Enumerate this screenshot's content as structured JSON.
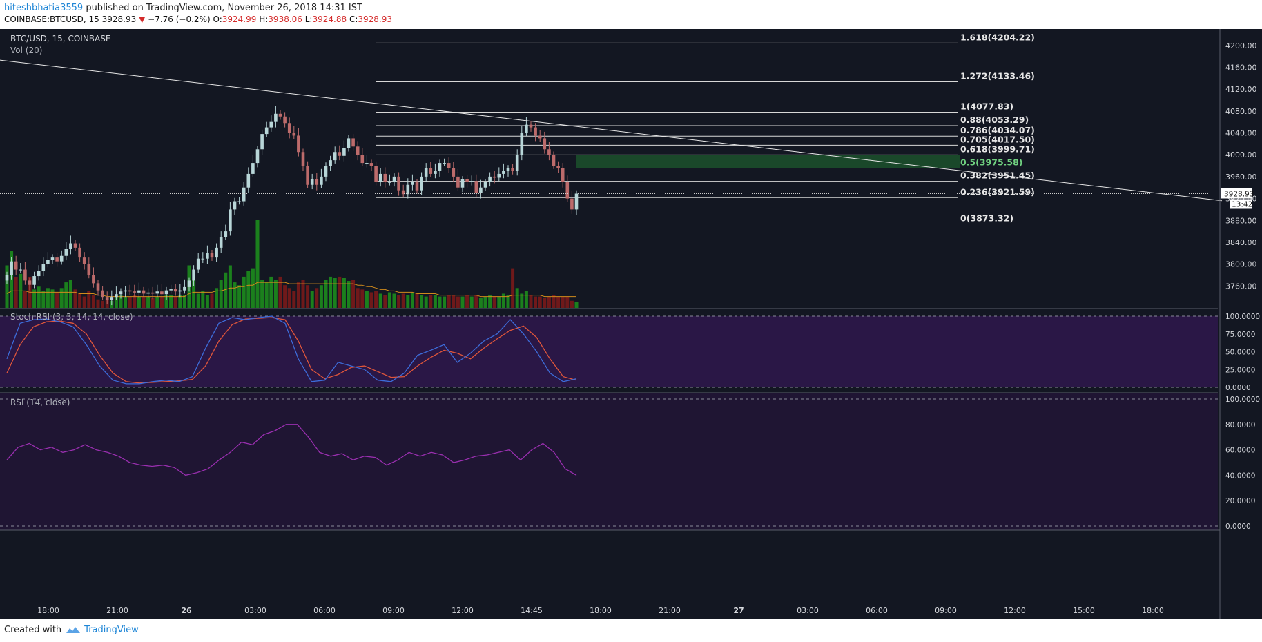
{
  "header": {
    "user": "hiteshbhatia3559",
    "published": " published on TradingView.com, November 26, 2018 14:31 IST",
    "symbol": "COINBASE:BTCUSD, 15",
    "last": "3928.93",
    "change": "−7.76 (−0.2%)",
    "o_label": "O:",
    "o": "3924.99",
    "h_label": "H:",
    "h": "3938.06",
    "l_label": "L:",
    "l": "3924.88",
    "c_label": "C:",
    "c": "3928.93"
  },
  "colors": {
    "background": "#131722",
    "up": "#b8d6d8",
    "down": "#bd6b6b",
    "vol_up": "#1d8c1d",
    "vol_down": "#7a1a1a",
    "fib_zone": "#1e5a2e",
    "stoch_bg": "#2a1746",
    "rsi_bg": "#1f1533",
    "stoch_k": "#3d6cd9",
    "stoch_d": "#e0563b",
    "rsi_line": "#9a2fb0",
    "vol_ma": "#d08a1c"
  },
  "chart_data": {
    "type": "candlestick",
    "title": "BTC/USD, 15, COINBASE",
    "volume_label": "Vol (20)",
    "price_axis": {
      "ylim": [
        3720,
        4230
      ],
      "ticks": [
        "4200.00",
        "4160.00",
        "4120.00",
        "4080.00",
        "4040.00",
        "4000.00",
        "3960.00",
        "3920.00",
        "3880.00",
        "3840.00",
        "3800.00",
        "3760.00"
      ],
      "current_price": "3928.93",
      "countdown": "13:42"
    },
    "time_axis": [
      "18:00",
      "21:00",
      "26",
      "03:00",
      "06:00",
      "09:00",
      "12:00",
      "14:45",
      "18:00",
      "21:00",
      "27",
      "03:00",
      "06:00",
      "09:00",
      "12:00",
      "15:00",
      "18:00"
    ],
    "candles_close": [
      3780,
      3805,
      3790,
      3790,
      3770,
      3762,
      3778,
      3788,
      3800,
      3808,
      3812,
      3805,
      3815,
      3828,
      3838,
      3830,
      3812,
      3800,
      3780,
      3765,
      3752,
      3740,
      3735,
      3740,
      3745,
      3750,
      3752,
      3750,
      3748,
      3752,
      3746,
      3748,
      3746,
      3750,
      3745,
      3752,
      3754,
      3750,
      3752,
      3758,
      3770,
      3790,
      3810,
      3810,
      3820,
      3812,
      3830,
      3850,
      3860,
      3900,
      3915,
      3915,
      3940,
      3965,
      3985,
      4010,
      4038,
      4050,
      4060,
      4075,
      4070,
      4058,
      4040,
      4035,
      4005,
      3980,
      3945,
      3955,
      3945,
      3960,
      3980,
      3990,
      4005,
      3998,
      4012,
      4030,
      4015,
      4000,
      3985,
      3985,
      3980,
      3950,
      3965,
      3950,
      3950,
      3960,
      3935,
      3928,
      3945,
      3950,
      3935,
      3960,
      3975,
      3965,
      3970,
      3985,
      3985,
      3975,
      3960,
      3940,
      3955,
      3950,
      3952,
      3930,
      3940,
      3950,
      3960,
      3958,
      3965,
      3970,
      3975,
      3970,
      4000,
      4040,
      4055,
      4050,
      4035,
      4030,
      4010,
      4000,
      3980,
      3975,
      3950,
      3920,
      3900,
      3928.93
    ],
    "volume_close": [
      30,
      40,
      22,
      24,
      12,
      22,
      13,
      15,
      12,
      14,
      13,
      11,
      14,
      18,
      20,
      13,
      10,
      8,
      12,
      9,
      6,
      5,
      6,
      5,
      8,
      9,
      8,
      8,
      9,
      8,
      8,
      8,
      7,
      8,
      8,
      9,
      9,
      8,
      9,
      9,
      30,
      20,
      10,
      12,
      9,
      10,
      14,
      20,
      25,
      30,
      18,
      16,
      22,
      26,
      28,
      62,
      20,
      18,
      22,
      20,
      22,
      16,
      14,
      12,
      18,
      20,
      16,
      12,
      14,
      16,
      20,
      22,
      21,
      22,
      21,
      19,
      20,
      14,
      13,
      12,
      11,
      12,
      10,
      9,
      11,
      10,
      9,
      10,
      9,
      11,
      10,
      9,
      8,
      9,
      9,
      8,
      8,
      9,
      9,
      8,
      8,
      9,
      8,
      9,
      7,
      8,
      9,
      8,
      8,
      10,
      9,
      28,
      14,
      10,
      12,
      9,
      8,
      8,
      7,
      8,
      9,
      8,
      8,
      8,
      5,
      4
    ],
    "volume_ma": [
      10,
      12,
      12,
      12,
      12,
      11,
      11,
      11,
      11,
      11,
      11,
      11,
      11,
      11,
      11,
      11,
      10,
      10,
      10,
      10,
      9,
      9,
      8,
      8,
      8,
      8,
      8,
      8,
      8,
      8,
      8,
      8,
      8,
      8,
      8,
      8,
      8,
      8,
      8,
      8,
      10,
      11,
      11,
      11,
      11,
      11,
      12,
      12,
      13,
      14,
      14,
      15,
      15,
      16,
      16,
      18,
      18,
      18,
      18,
      18,
      18,
      18,
      17,
      17,
      17,
      17,
      17,
      17,
      17,
      17,
      17,
      17,
      17,
      17,
      17,
      17,
      17,
      16,
      16,
      15,
      15,
      14,
      13,
      13,
      12,
      12,
      11,
      11,
      11,
      11,
      10,
      10,
      10,
      10,
      10,
      9,
      9,
      9,
      9,
      9,
      9,
      9,
      9,
      9,
      8,
      8,
      8,
      8,
      8,
      8,
      8,
      9,
      9,
      9,
      9,
      9,
      9,
      9,
      8,
      8,
      8,
      8,
      8,
      8,
      8,
      8
    ],
    "fib_levels": [
      {
        "ratio": "1.618",
        "price": 4204.22,
        "label": "1.618(4204.22)"
      },
      {
        "ratio": "1.272",
        "price": 4133.46,
        "label": "1.272(4133.46)"
      },
      {
        "ratio": "1",
        "price": 4077.83,
        "label": "1(4077.83)"
      },
      {
        "ratio": "0.88",
        "price": 4053.29,
        "label": "0.88(4053.29)"
      },
      {
        "ratio": "0.786",
        "price": 4034.07,
        "label": "0.786(4034.07)"
      },
      {
        "ratio": "0.705",
        "price": 4017.5,
        "label": "0.705(4017.50)"
      },
      {
        "ratio": "0.618",
        "price": 3999.71,
        "label": "0.618(3999.71)"
      },
      {
        "ratio": "0.5",
        "price": 3975.58,
        "label": "0.5(3975.58)"
      },
      {
        "ratio": "0.382",
        "price": 3951.45,
        "label": "0.382(3951.45)"
      },
      {
        "ratio": "0.236",
        "price": 3921.59,
        "label": "0.236(3921.59)"
      },
      {
        "ratio": "0",
        "price": 3873.32,
        "label": "0(3873.32)"
      }
    ],
    "trendline": [
      [
        0,
        4173
      ],
      [
        1770,
        3916
      ]
    ],
    "stoch": {
      "label": "Stoch RSI (3, 3, 14, 14, close)",
      "ylim": [
        0,
        100
      ],
      "ticks": [
        "100.0000",
        "75.0000",
        "50.0000",
        "25.0000",
        "0.0000"
      ],
      "k": [
        40,
        90,
        95,
        96,
        92,
        85,
        60,
        30,
        10,
        5,
        5,
        8,
        10,
        8,
        15,
        55,
        90,
        98,
        95,
        98,
        100,
        90,
        40,
        8,
        10,
        35,
        30,
        25,
        10,
        8,
        20,
        45,
        52,
        60,
        35,
        48,
        65,
        75,
        95,
        75,
        50,
        20,
        8,
        12
      ],
      "d": [
        20,
        60,
        85,
        92,
        93,
        90,
        75,
        45,
        20,
        8,
        6,
        7,
        8,
        9,
        11,
        30,
        65,
        88,
        96,
        97,
        98,
        95,
        65,
        25,
        12,
        18,
        28,
        30,
        22,
        14,
        15,
        30,
        42,
        52,
        48,
        40,
        55,
        68,
        80,
        86,
        70,
        40,
        15,
        10
      ]
    },
    "rsi": {
      "label": "RSI (14, close)",
      "ylim": [
        0,
        100
      ],
      "ticks": [
        "100.0000",
        "80.0000",
        "60.0000",
        "40.0000",
        "20.0000",
        "0.0000"
      ],
      "values": [
        52,
        62,
        65,
        60,
        62,
        58,
        60,
        64,
        60,
        58,
        55,
        50,
        48,
        47,
        48,
        46,
        40,
        42,
        45,
        52,
        58,
        66,
        64,
        72,
        75,
        80,
        80,
        70,
        58,
        55,
        57,
        52,
        55,
        54,
        48,
        52,
        58,
        55,
        58,
        56,
        50,
        52,
        55,
        56,
        58,
        60,
        52,
        60,
        65,
        58,
        45,
        40
      ]
    }
  },
  "footer": {
    "created_with": "Created with",
    "brand": "TradingView"
  }
}
